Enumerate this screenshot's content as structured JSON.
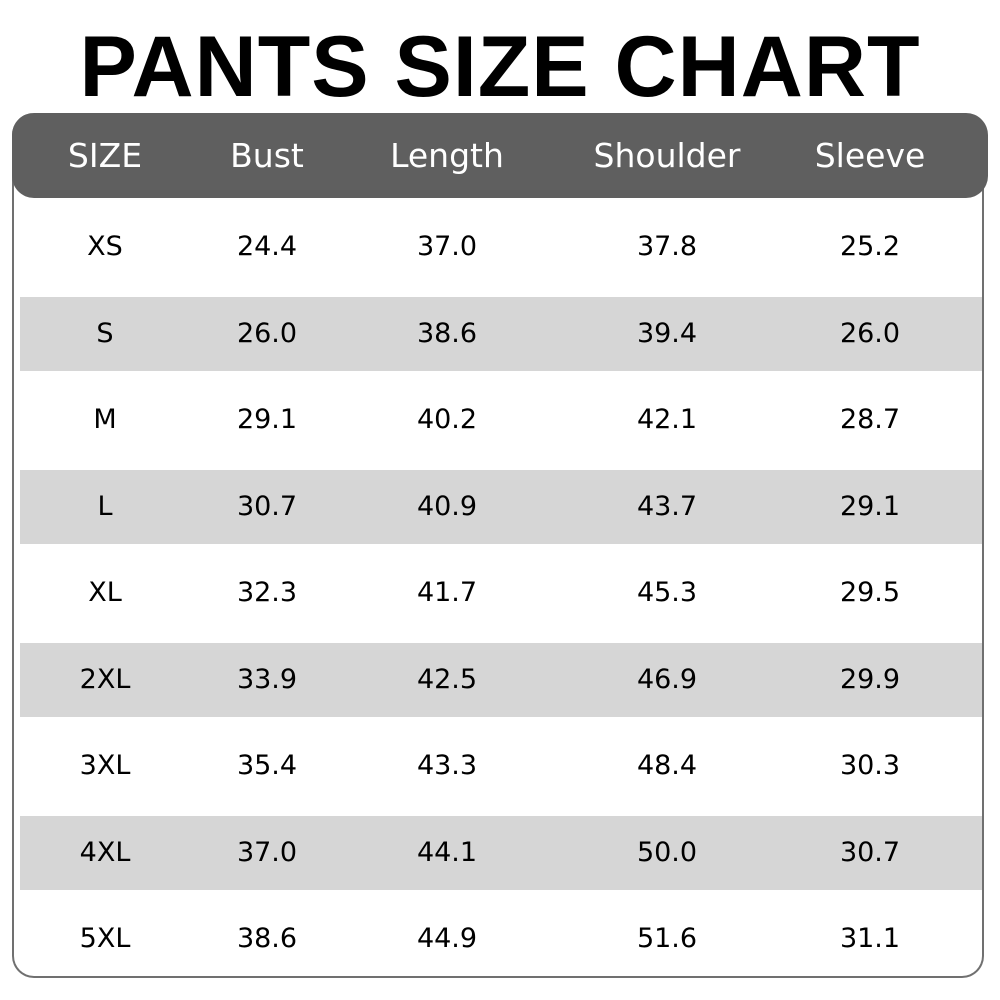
{
  "title": "PANTS SIZE CHART",
  "colors": {
    "header_bg": "#5f5f5f",
    "header_text": "#ffffff",
    "stripe": "#d6d6d6"
  },
  "table": {
    "columns": [
      "SIZE",
      "Bust",
      "Length",
      "Shoulder",
      "Sleeve"
    ],
    "rows": [
      [
        "XS",
        "24.4",
        "37.0",
        "37.8",
        "25.2"
      ],
      [
        "S",
        "26.0",
        "38.6",
        "39.4",
        "26.0"
      ],
      [
        "M",
        "29.1",
        "40.2",
        "42.1",
        "28.7"
      ],
      [
        "L",
        "30.7",
        "40.9",
        "43.7",
        "29.1"
      ],
      [
        "XL",
        "32.3",
        "41.7",
        "45.3",
        "29.5"
      ],
      [
        "2XL",
        "33.9",
        "42.5",
        "46.9",
        "29.9"
      ],
      [
        "3XL",
        "35.4",
        "43.3",
        "48.4",
        "30.3"
      ],
      [
        "4XL",
        "37.0",
        "44.1",
        "50.0",
        "30.7"
      ],
      [
        "5XL",
        "38.6",
        "44.9",
        "51.6",
        "31.1"
      ]
    ]
  }
}
